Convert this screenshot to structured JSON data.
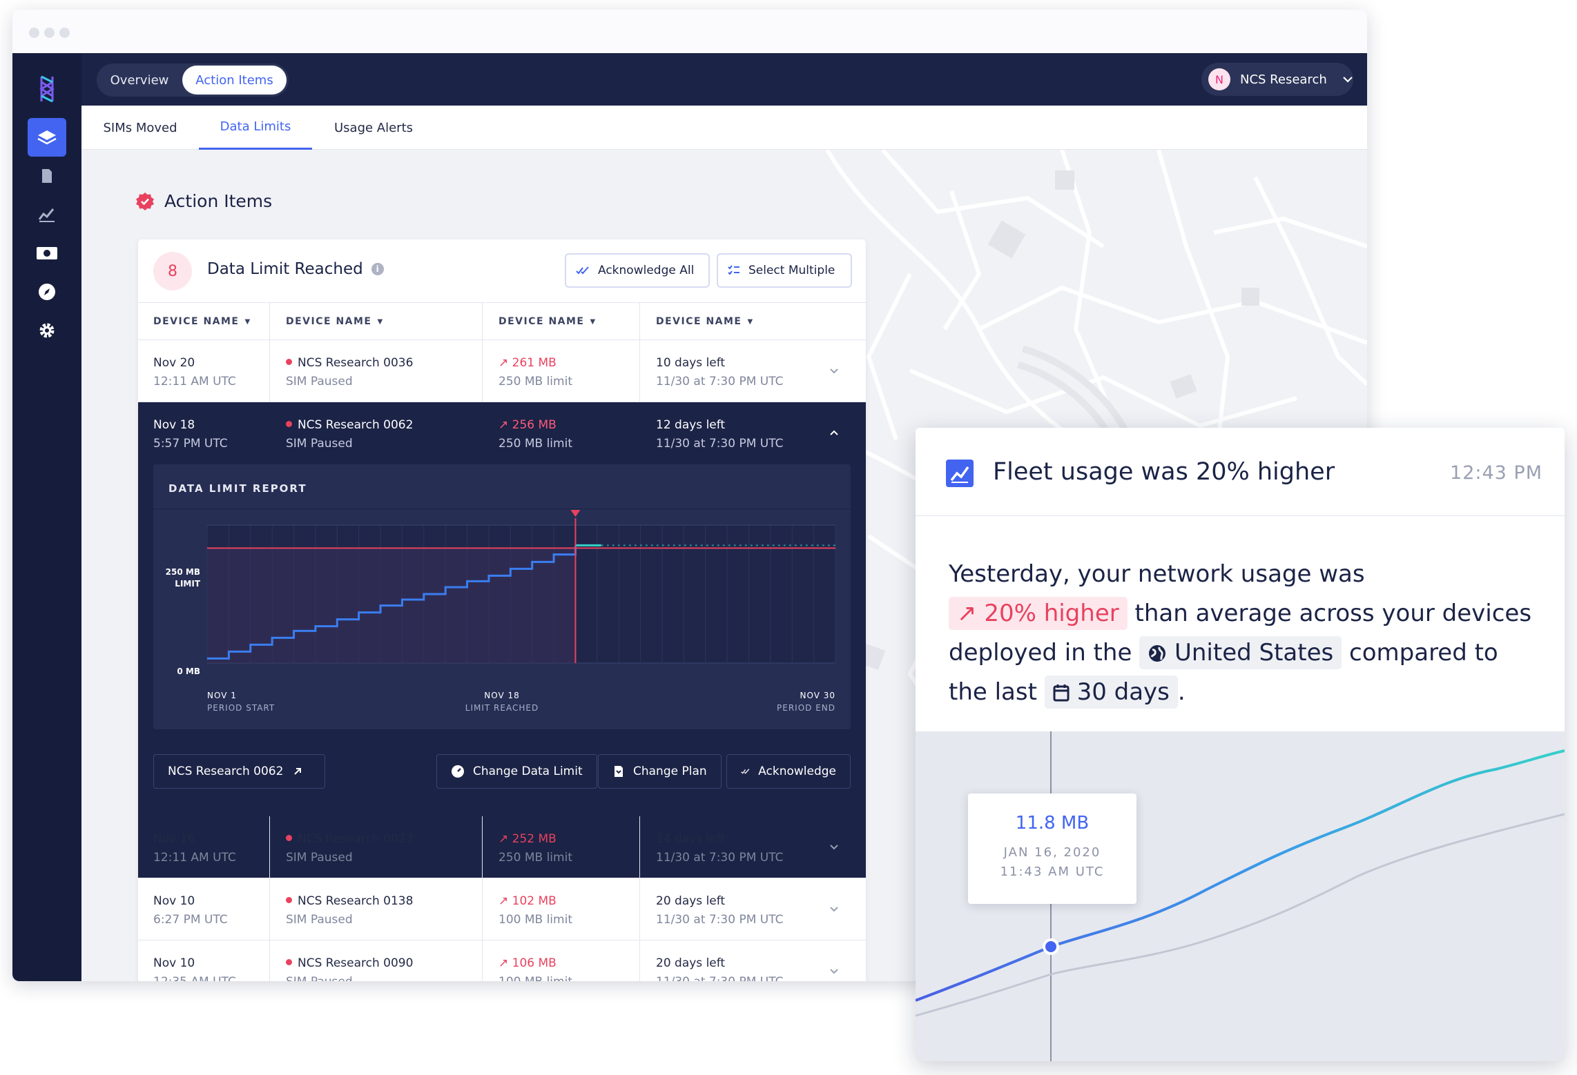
{
  "app": {
    "top_tabs": [
      "Overview",
      "Action Items"
    ],
    "org_initial": "N",
    "org_name": "NCS Research",
    "sub_tabs": [
      "SIMs Moved",
      "Data Limits",
      "Usage Alerts"
    ],
    "sidebar_icons": [
      "layers-icon",
      "document-icon",
      "chart-icon",
      "billing-icon",
      "compass-icon",
      "gear-icon"
    ]
  },
  "section_title": "Action Items",
  "card": {
    "count": "8",
    "title": "Data Limit Reached",
    "acknowledge_all": "Acknowledge All",
    "select_multiple": "Select Multiple",
    "columns": [
      "DEVICE NAME",
      "DEVICE NAME",
      "DEVICE NAME",
      "DEVICE NAME"
    ],
    "rows": [
      {
        "date": "Nov 20",
        "time": "12:11 AM UTC",
        "device": "NCS Research 0036",
        "status": "SIM Paused",
        "usage": "261 MB",
        "limit": "250 MB limit",
        "days": "10 days left",
        "end": "11/30 at 7:30 PM UTC"
      },
      {
        "date": "Nov 18",
        "time": "5:57 PM UTC",
        "device": "NCS Research 0062",
        "status": "SIM Paused",
        "usage": "256 MB",
        "limit": "250 MB limit",
        "days": "12 days left",
        "end": "11/30 at 7:30 PM UTC"
      },
      {
        "date": "Nov 16",
        "time": "12:11 AM UTC",
        "device": "NCS Research 0023",
        "status": "SIM Paused",
        "usage": "252 MB",
        "limit": "250 MB limit",
        "days": "14 days left",
        "end": "11/30 at 7:30 PM UTC"
      },
      {
        "date": "Nov 10",
        "time": "6:27 PM UTC",
        "device": "NCS Research 0138",
        "status": "SIM Paused",
        "usage": "102 MB",
        "limit": "100 MB limit",
        "days": "20 days left",
        "end": "11/30 at 7:30 PM UTC"
      },
      {
        "date": "Nov 10",
        "time": "12:35 AM UTC",
        "device": "NCS Research 0090",
        "status": "SIM Paused",
        "usage": "106 MB",
        "limit": "100 MB limit",
        "days": "20 days left",
        "end": "11/30 at 7:30 PM UTC"
      }
    ],
    "report": {
      "title": "DATA LIMIT REPORT",
      "y_top": "250 MB",
      "y_top_sub": "LIMIT",
      "y_bottom": "0 MB",
      "x_start": "NOV 1",
      "x_start_sub": "PERIOD START",
      "x_mid": "NOV 18",
      "x_mid_sub": "LIMIT REACHED",
      "x_end": "NOV 30",
      "x_end_sub": "PERIOD END"
    },
    "actions": {
      "device_link": "NCS Research 0062",
      "change_limit": "Change Data Limit",
      "change_plan": "Change Plan",
      "acknowledge": "Acknowledge"
    }
  },
  "chart_data": {
    "type": "line",
    "title": "DATA LIMIT REPORT",
    "xlabel": "",
    "ylabel": "",
    "x_ticks": [
      "NOV 1",
      "NOV 18",
      "NOV 30"
    ],
    "y_ticks": [
      "0 MB",
      "250 MB LIMIT"
    ],
    "ylim": [
      0,
      300
    ],
    "limit_value": 250,
    "marker_day": 18,
    "series": [
      {
        "values": [
          [
            1,
            10
          ],
          [
            2,
            25
          ],
          [
            3,
            40
          ],
          [
            4,
            55
          ],
          [
            5,
            70
          ],
          [
            6,
            80
          ],
          [
            7,
            95
          ],
          [
            8,
            110
          ],
          [
            9,
            125
          ],
          [
            10,
            138
          ],
          [
            11,
            150
          ],
          [
            12,
            165
          ],
          [
            13,
            178
          ],
          [
            14,
            190
          ],
          [
            15,
            205
          ],
          [
            16,
            220
          ],
          [
            17,
            236
          ],
          [
            18,
            256
          ],
          [
            19,
            256
          ]
        ]
      }
    ]
  },
  "popup": {
    "title": "Fleet usage was 20% higher",
    "time": "12:43 PM",
    "body_1": "Yesterday, your network usage was",
    "highlight": "20% higher",
    "body_2": "than average across your devices deployed in the",
    "region": "United States",
    "body_3": "compared to the last",
    "period": "30 days",
    "body_end": ".",
    "tooltip_value": "11.8 MB",
    "tooltip_date": "JAN 16, 2020",
    "tooltip_time": "11:43 AM UTC"
  },
  "colors": {
    "accent": "#4264f0",
    "alert": "#e8425f",
    "navy": "#1b2346",
    "teal": "#35d0c8"
  }
}
